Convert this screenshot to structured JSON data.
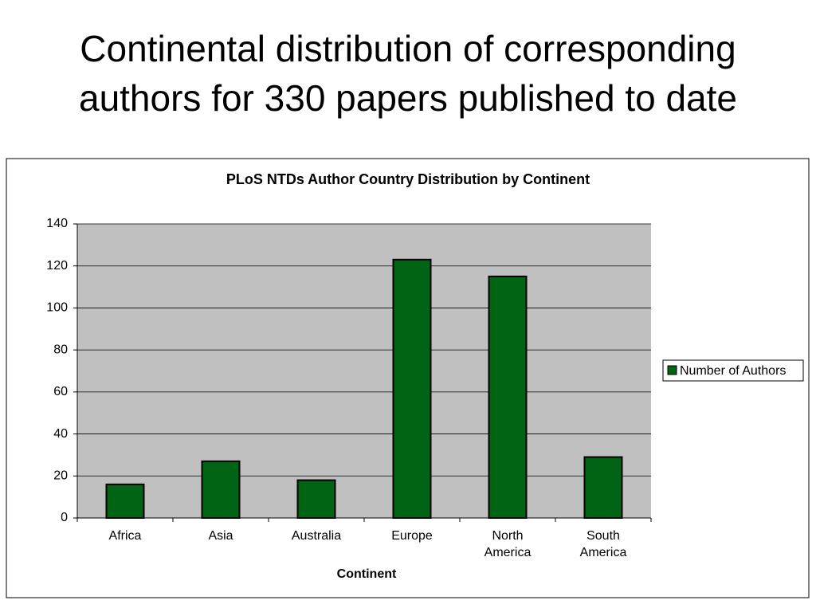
{
  "slide_title": "Continental distribution of corresponding authors for 330 papers published to date",
  "chart_data": {
    "type": "bar",
    "title": "PLoS NTDs Author Country Distribution by Continent",
    "x_label": "Continent",
    "categories": [
      "Africa",
      "Asia",
      "Australia",
      "Europe",
      "North America",
      "South America"
    ],
    "series": [
      {
        "name": "Number of Authors",
        "color": "#006414",
        "values": [
          16,
          27,
          18,
          123,
          115,
          29
        ]
      }
    ],
    "ylim": [
      0,
      140
    ],
    "yticks": [
      0,
      20,
      40,
      60,
      80,
      100,
      120,
      140
    ],
    "grid": true,
    "legend": "right"
  }
}
